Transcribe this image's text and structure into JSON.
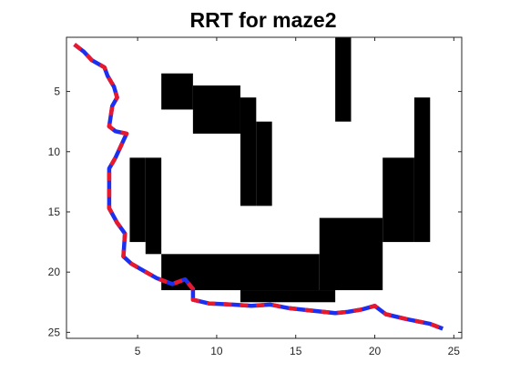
{
  "chart_data": {
    "type": "heatmap",
    "title": "RRT for maze2",
    "xlabel": "",
    "ylabel": "",
    "xlim": [
      0.5,
      25.5
    ],
    "ylim": [
      25.5,
      0.5
    ],
    "y_axis_direction": "reversed",
    "xticks": [
      5,
      10,
      15,
      20,
      25
    ],
    "yticks": [
      5,
      10,
      15,
      20,
      25
    ],
    "grid": false,
    "legend": "none",
    "colors": {
      "free": "#ffffff",
      "wall": "#000000",
      "path_dash_a": "#e8192c",
      "path_dash_b": "#1c2ff0",
      "axes": "#262626"
    },
    "walls": [
      {
        "cols": [
          18,
          18
        ],
        "rows": [
          1,
          7
        ]
      },
      {
        "cols": [
          7,
          8
        ],
        "rows": [
          4,
          6
        ]
      },
      {
        "cols": [
          9,
          11
        ],
        "rows": [
          5,
          8
        ]
      },
      {
        "cols": [
          12,
          12
        ],
        "rows": [
          6,
          14
        ]
      },
      {
        "cols": [
          13,
          13
        ],
        "rows": [
          8,
          14
        ]
      },
      {
        "cols": [
          23,
          23
        ],
        "rows": [
          6,
          17
        ]
      },
      {
        "cols": [
          21,
          22
        ],
        "rows": [
          11,
          17
        ]
      },
      {
        "cols": [
          5,
          5
        ],
        "rows": [
          11,
          17
        ]
      },
      {
        "cols": [
          6,
          6
        ],
        "rows": [
          11,
          18
        ]
      },
      {
        "cols": [
          17,
          20
        ],
        "rows": [
          16,
          21
        ]
      },
      {
        "cols": [
          7,
          16
        ],
        "rows": [
          19,
          21
        ]
      },
      {
        "cols": [
          12,
          17
        ],
        "rows": [
          22,
          22
        ]
      }
    ],
    "series": [
      {
        "x": [
          1,
          1.6,
          2.1,
          2.9,
          3.1,
          3.5,
          3.7,
          3.4,
          3.2,
          3.6,
          4.3,
          3.6,
          3.2,
          3.2,
          3.7,
          4.2,
          4.1,
          4.6,
          5.4,
          6.2,
          7.2,
          8.0,
          8.5,
          8.5,
          9.5,
          11.0,
          12.2,
          13.4,
          14.6,
          16.0,
          17.5,
          18.3,
          19.2,
          20.0,
          20.7,
          22.0,
          23.5,
          24.3
        ],
        "y": [
          1.1,
          1.7,
          2.4,
          3.0,
          3.7,
          4.6,
          5.5,
          6.2,
          7.9,
          8.3,
          8.5,
          10.5,
          11.4,
          14.7,
          15.9,
          16.8,
          18.7,
          19.3,
          19.9,
          20.5,
          21.0,
          20.6,
          21.4,
          22.3,
          22.6,
          22.7,
          22.8,
          22.7,
          23.0,
          23.2,
          23.4,
          23.3,
          23.1,
          22.8,
          23.5,
          23.9,
          24.3,
          24.7
        ]
      }
    ]
  }
}
